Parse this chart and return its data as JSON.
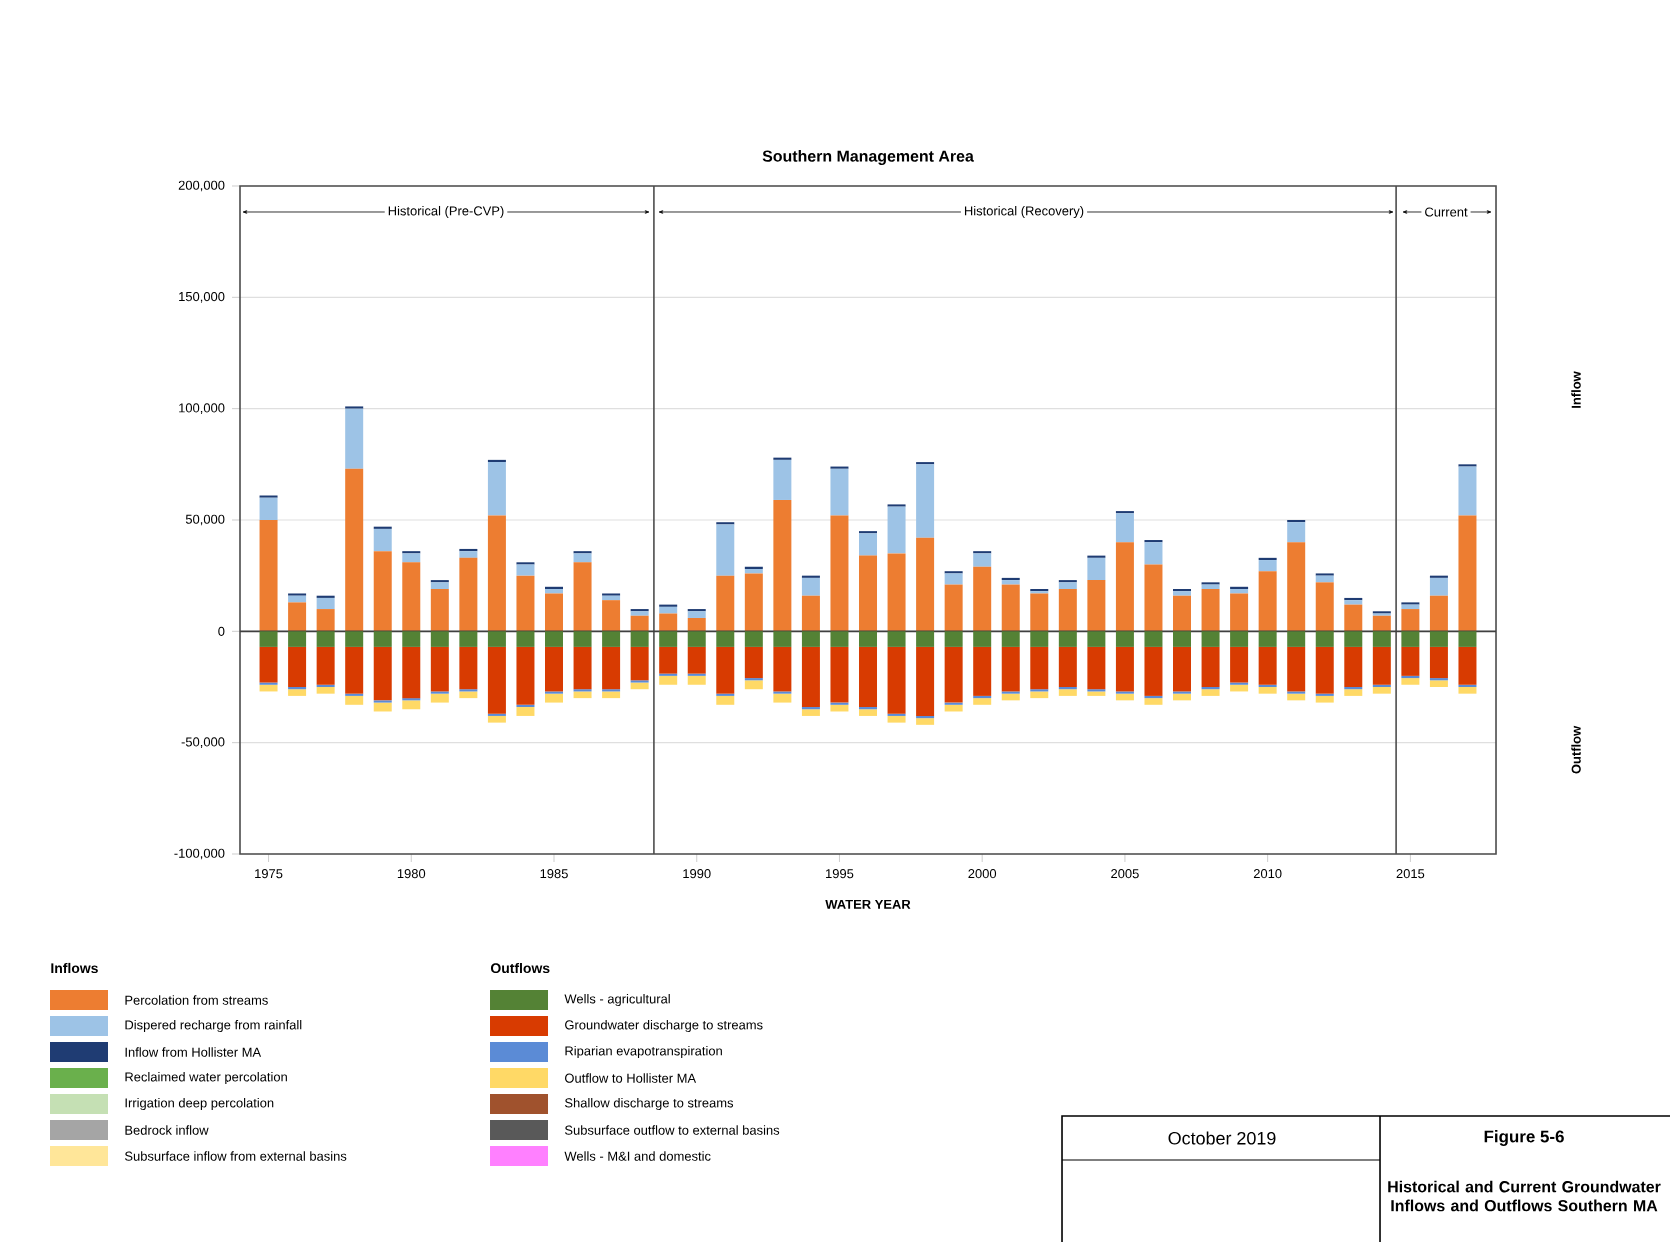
{
  "chart_data": {
    "type": "bar",
    "stacked": true,
    "title": "Southern Management Area",
    "xlabel": "WATER YEAR",
    "x": [
      1975,
      1976,
      1977,
      1978,
      1979,
      1980,
      1981,
      1982,
      1983,
      1984,
      1985,
      1986,
      1987,
      1988,
      1989,
      1990,
      1991,
      1992,
      1993,
      1994,
      1995,
      1996,
      1997,
      1998,
      1999,
      2000,
      2001,
      2002,
      2003,
      2004,
      2005,
      2006,
      2007,
      2008,
      2009,
      2010,
      2011,
      2012,
      2013,
      2014,
      2015,
      2016,
      2017
    ],
    "xlim": [
      1974,
      2018
    ],
    "xticks": [
      1975,
      1980,
      1985,
      1990,
      1995,
      2000,
      2005,
      2010,
      2015
    ],
    "ylim": [
      -100000,
      200000
    ],
    "yticks": [
      {
        "value": -100000,
        "label": "-100,000"
      },
      {
        "value": -50000,
        "label": "-50,000"
      },
      {
        "value": 0,
        "label": "0"
      },
      {
        "value": 50000,
        "label": "50,000"
      },
      {
        "value": 100000,
        "label": "100,000"
      },
      {
        "value": 150000,
        "label": "150,000"
      },
      {
        "value": 200000,
        "label": "200,000"
      }
    ],
    "grid": "y",
    "legend": "bottom left",
    "series": [
      {
        "name": "Percolation from streams",
        "color": "#ed7d31",
        "values": [
          50000,
          13000,
          10000,
          73000,
          36000,
          31000,
          19000,
          33000,
          52000,
          25000,
          17000,
          31000,
          14000,
          7000,
          8000,
          6000,
          25000,
          26000,
          59000,
          16000,
          52000,
          34000,
          35000,
          42000,
          21000,
          29000,
          21000,
          17000,
          19000,
          23000,
          40000,
          30000,
          16000,
          19000,
          17000,
          27000,
          40000,
          22000,
          12000,
          7000,
          10000,
          16000,
          52000
        ]
      },
      {
        "name": "Dispered recharge from rainfall",
        "color": "#9dc3e6",
        "values": [
          10000,
          3000,
          5000,
          27000,
          10000,
          4000,
          3000,
          3000,
          24000,
          5000,
          2000,
          4000,
          2000,
          2000,
          3000,
          3000,
          23000,
          2000,
          18000,
          8000,
          21000,
          10000,
          21000,
          33000,
          5000,
          6000,
          2000,
          1000,
          3000,
          10000,
          13000,
          10000,
          2000,
          2000,
          2000,
          5000,
          9000,
          3000,
          2000,
          1000,
          2000,
          8000,
          22000
        ]
      },
      {
        "name": "Inflow from Hollister MA",
        "color": "#1f3c73",
        "values": [
          1000,
          1000,
          1000,
          1000,
          1000,
          1000,
          1000,
          1000,
          1000,
          1000,
          1000,
          1000,
          1000,
          1000,
          1000,
          1000,
          1000,
          1000,
          1000,
          1000,
          1000,
          1000,
          1000,
          1000,
          1000,
          1000,
          1000,
          1000,
          1000,
          1000,
          1000,
          1000,
          1000,
          1000,
          1000,
          1000,
          1000,
          1000,
          1000,
          1000,
          1000,
          1000,
          1000
        ]
      },
      {
        "name": "Reclaimed water percolation",
        "color": "#6ab04c",
        "values": [
          null,
          null,
          null,
          null,
          null,
          null,
          null,
          null,
          null,
          null,
          null,
          null,
          null,
          null,
          null,
          null,
          null,
          null,
          null,
          null,
          null,
          null,
          null,
          null,
          null,
          null,
          null,
          null,
          null,
          null,
          null,
          null,
          null,
          null,
          null,
          null,
          null,
          null,
          null,
          null,
          null,
          null,
          null
        ]
      },
      {
        "name": "Irrigation deep percolation",
        "color": "#c5e0b4",
        "values": [
          null,
          null,
          null,
          null,
          null,
          null,
          null,
          null,
          null,
          null,
          null,
          null,
          null,
          null,
          null,
          null,
          null,
          null,
          null,
          null,
          null,
          null,
          null,
          null,
          null,
          null,
          null,
          null,
          null,
          null,
          null,
          null,
          null,
          null,
          null,
          null,
          null,
          null,
          null,
          null,
          null,
          null,
          null
        ]
      },
      {
        "name": "Bedrock inflow",
        "color": "#a5a5a5",
        "values": [
          null,
          null,
          null,
          null,
          null,
          null,
          null,
          null,
          null,
          null,
          null,
          null,
          null,
          null,
          null,
          null,
          null,
          null,
          null,
          null,
          null,
          null,
          null,
          null,
          null,
          null,
          null,
          null,
          null,
          null,
          null,
          null,
          null,
          null,
          null,
          null,
          null,
          null,
          null,
          null,
          null,
          null,
          null
        ]
      },
      {
        "name": "Subsurface inflow from external basins",
        "color": "#ffe699",
        "values": [
          null,
          null,
          null,
          null,
          null,
          null,
          null,
          null,
          null,
          null,
          null,
          null,
          null,
          null,
          null,
          null,
          null,
          null,
          null,
          null,
          null,
          null,
          null,
          null,
          null,
          null,
          null,
          null,
          null,
          null,
          null,
          null,
          null,
          null,
          null,
          null,
          null,
          null,
          null,
          null,
          null,
          null,
          null
        ]
      },
      {
        "name": "Wells - agricultural",
        "color": "#548235",
        "values": [
          -7000,
          -7000,
          -7000,
          -7000,
          -7000,
          -7000,
          -7000,
          -7000,
          -7000,
          -7000,
          -7000,
          -7000,
          -7000,
          -7000,
          -7000,
          -7000,
          -7000,
          -7000,
          -7000,
          -7000,
          -7000,
          -7000,
          -7000,
          -7000,
          -7000,
          -7000,
          -7000,
          -7000,
          -7000,
          -7000,
          -7000,
          -7000,
          -7000,
          -7000,
          -7000,
          -7000,
          -7000,
          -7000,
          -7000,
          -7000,
          -7000,
          -7000,
          -7000
        ]
      },
      {
        "name": "Groundwater discharge to streams",
        "color": "#d83b01",
        "values": [
          -16000,
          -18000,
          -17000,
          -21000,
          -24000,
          -23000,
          -20000,
          -19000,
          -30000,
          -26000,
          -20000,
          -19000,
          -19000,
          -15000,
          -12000,
          -12000,
          -21000,
          -14000,
          -20000,
          -27000,
          -25000,
          -27000,
          -30000,
          -31000,
          -25000,
          -22000,
          -20000,
          -19000,
          -18000,
          -19000,
          -20000,
          -22000,
          -20000,
          -18000,
          -16000,
          -17000,
          -20000,
          -21000,
          -18000,
          -17000,
          -13000,
          -14000,
          -17000
        ]
      },
      {
        "name": "Riparian evapotranspiration",
        "color": "#5b8bd6",
        "values": [
          -1000,
          -1000,
          -1000,
          -1000,
          -1000,
          -1000,
          -1000,
          -1000,
          -1000,
          -1000,
          -1000,
          -1000,
          -1000,
          -1000,
          -1000,
          -1000,
          -1000,
          -1000,
          -1000,
          -1000,
          -1000,
          -1000,
          -1000,
          -1000,
          -1000,
          -1000,
          -1000,
          -1000,
          -1000,
          -1000,
          -1000,
          -1000,
          -1000,
          -1000,
          -1000,
          -1000,
          -1000,
          -1000,
          -1000,
          -1000,
          -1000,
          -1000,
          -1000
        ]
      },
      {
        "name": "Outflow to Hollister MA",
        "color": "#ffd966",
        "values": [
          -3000,
          -3000,
          -3000,
          -4000,
          -4000,
          -4000,
          -4000,
          -3000,
          -3000,
          -4000,
          -4000,
          -3000,
          -3000,
          -3000,
          -4000,
          -4000,
          -4000,
          -4000,
          -4000,
          -3000,
          -3000,
          -3000,
          -3000,
          -3000,
          -3000,
          -3000,
          -3000,
          -3000,
          -3000,
          -2000,
          -3000,
          -3000,
          -3000,
          -3000,
          -3000,
          -3000,
          -3000,
          -3000,
          -3000,
          -3000,
          -3000,
          -3000,
          -3000
        ]
      },
      {
        "name": "Shallow discharge to streams",
        "color": "#a0522d",
        "values": [
          null,
          null,
          null,
          null,
          null,
          null,
          null,
          null,
          null,
          null,
          null,
          null,
          null,
          null,
          null,
          null,
          null,
          null,
          null,
          null,
          null,
          null,
          null,
          null,
          null,
          null,
          null,
          null,
          null,
          null,
          null,
          null,
          null,
          null,
          null,
          null,
          null,
          null,
          null,
          null,
          null,
          null,
          null
        ]
      },
      {
        "name": "Subsurface outflow to external basins",
        "color": "#595959",
        "values": [
          null,
          null,
          null,
          null,
          null,
          null,
          null,
          null,
          null,
          null,
          null,
          null,
          null,
          null,
          null,
          null,
          null,
          null,
          null,
          null,
          null,
          null,
          null,
          null,
          null,
          null,
          null,
          null,
          null,
          null,
          null,
          null,
          null,
          null,
          null,
          null,
          null,
          null,
          null,
          null,
          null,
          null,
          null
        ]
      },
      {
        "name": "Wells - M&I and domestic",
        "color": "#ff80ff",
        "values": [
          null,
          null,
          null,
          null,
          null,
          null,
          null,
          null,
          null,
          null,
          null,
          null,
          null,
          null,
          null,
          null,
          null,
          null,
          null,
          null,
          null,
          null,
          null,
          null,
          null,
          null,
          null,
          null,
          null,
          null,
          null,
          null,
          null,
          null,
          null,
          null,
          null,
          null,
          null,
          null,
          null,
          null,
          null
        ]
      }
    ],
    "ref_lines": [
      {
        "axis": "y",
        "value": 0
      },
      {
        "axis": "x",
        "value": 1988.5
      },
      {
        "axis": "x",
        "value": 2014.5
      }
    ],
    "annotations": [
      "Inflow",
      "Outflow",
      "Inflows",
      "Outflows",
      "October 2019",
      "Figure 5-6",
      "Historical and Current Groundwater Inflows and Outflows Southern MA",
      "Historical (Pre-CVP)",
      "Historical (Recovery)",
      "Current"
    ]
  }
}
